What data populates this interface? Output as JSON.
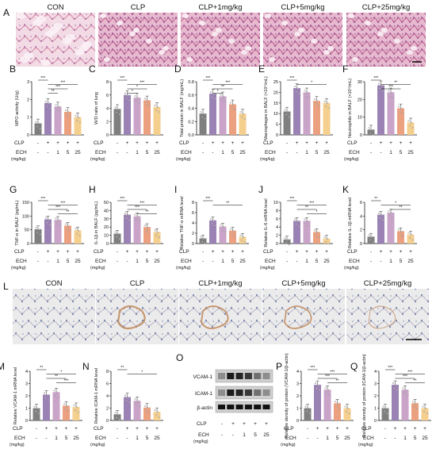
{
  "panel_letters": [
    "A",
    "B",
    "C",
    "D",
    "E",
    "F",
    "G",
    "H",
    "I",
    "J",
    "K",
    "L",
    "M",
    "N",
    "O",
    "P",
    "Q"
  ],
  "he_titles": [
    "CON",
    "CLP",
    "CLP+1mg/kg",
    "CLP+5mg/kg",
    "CLP+25mg/kg"
  ],
  "ihc_titles": [
    "CON",
    "CLP",
    "CLP+1mg/kg",
    "CLP+5mg/kg",
    "CLP+25mg/kg"
  ],
  "clp_label": "CLP",
  "ech_label": "ECH",
  "ech_unit": "(mg/kg)",
  "clp_row": [
    "-",
    "+",
    "+",
    "+",
    "+"
  ],
  "ech_row": [
    "-",
    "-",
    "1",
    "5",
    "25"
  ],
  "bar_colors": [
    "#7f7f7f",
    "#9b82b4",
    "#c9a3c8",
    "#eba07f",
    "#f5cf8e"
  ],
  "blot_labels": [
    "VCAM-1",
    "ICAM-1",
    "β-actin"
  ],
  "chart_data": [
    {
      "panel": "B",
      "type": "bar",
      "ylabel": "MPO activity (U/g)",
      "ylim": [
        0,
        3
      ],
      "yticks": [
        "0",
        "1",
        "2",
        "3"
      ],
      "values": [
        0.65,
        1.8,
        1.6,
        1.3,
        1.0
      ],
      "sig": [
        [
          "***",
          0,
          1
        ],
        [
          "***",
          1,
          4
        ],
        [
          "***",
          1,
          3
        ],
        [
          "**",
          1,
          2
        ]
      ]
    },
    {
      "panel": "C",
      "type": "bar",
      "ylabel": "W/D ratio of lung",
      "ylim": [
        0,
        8
      ],
      "yticks": [
        "0",
        "2",
        "4",
        "6",
        "8"
      ],
      "values": [
        3.9,
        6.0,
        5.6,
        5.2,
        4.2
      ],
      "sig": [
        [
          "***",
          0,
          1
        ],
        [
          "***",
          1,
          4
        ],
        [
          "*",
          1,
          3
        ],
        [
          "*",
          1,
          2
        ]
      ]
    },
    {
      "panel": "D",
      "type": "bar",
      "ylabel": "Total protein in BALF (mg/mL)",
      "ylim": [
        0,
        0.8
      ],
      "yticks": [
        "0.0",
        "0.2",
        "0.4",
        "0.6",
        "0.8"
      ],
      "values": [
        0.32,
        0.62,
        0.58,
        0.46,
        0.32
      ],
      "sig": [
        [
          "***",
          0,
          1
        ],
        [
          "***",
          1,
          4
        ],
        [
          "**",
          1,
          3
        ],
        [
          "*",
          1,
          2
        ]
      ]
    },
    {
      "panel": "E",
      "type": "bar",
      "ylabel": "Macrophages in BALF (×10⁴/mL)",
      "ylim": [
        0,
        25
      ],
      "yticks": [
        "0",
        "5",
        "10",
        "15",
        "20",
        "25"
      ],
      "values": [
        11,
        22,
        20,
        16,
        15
      ],
      "sig": [
        [
          "***",
          0,
          1
        ],
        [
          "*",
          1,
          4
        ]
      ]
    },
    {
      "panel": "F",
      "type": "bar",
      "ylabel": "Neutrophils in BALF (×10⁴/mL)",
      "ylim": [
        0,
        30
      ],
      "yticks": [
        "0",
        "10",
        "20",
        "30"
      ],
      "values": [
        3,
        28,
        24,
        15,
        7
      ],
      "sig": [
        [
          "***",
          0,
          1
        ],
        [
          "**",
          1,
          4
        ],
        [
          "***",
          1,
          3
        ]
      ]
    },
    {
      "panel": "G",
      "type": "bar",
      "ylabel": "TNF-α in BALF (pg/mL)",
      "ylim": [
        0,
        150
      ],
      "yticks": [
        "0",
        "50",
        "100",
        "150"
      ],
      "values": [
        52,
        88,
        86,
        65,
        48
      ],
      "sig": [
        [
          "***",
          0,
          1
        ],
        [
          "***",
          1,
          4
        ],
        [
          "***",
          1,
          3
        ],
        [
          "**",
          2,
          4
        ]
      ]
    },
    {
      "panel": "H",
      "type": "bar",
      "ylabel": "IL-1β in BALF (pg/mL)",
      "ylim": [
        0,
        50
      ],
      "yticks": [
        "0",
        "10",
        "20",
        "30",
        "40",
        "50"
      ],
      "values": [
        12,
        35,
        33,
        20,
        14
      ],
      "sig": [
        [
          "***",
          0,
          1
        ],
        [
          "***",
          1,
          4
        ],
        [
          "***",
          1,
          3
        ],
        [
          "**",
          2,
          4
        ]
      ]
    },
    {
      "panel": "I",
      "type": "bar",
      "ylabel": "Relative TNF-α mRNA level",
      "ylim": [
        0,
        8
      ],
      "yticks": [
        "0",
        "2",
        "4",
        "6",
        "8"
      ],
      "values": [
        1,
        4.5,
        3.3,
        2.5,
        1.3
      ],
      "sig": [
        [
          "***",
          0,
          1
        ],
        [
          "**",
          1,
          4
        ]
      ]
    },
    {
      "panel": "J",
      "type": "bar",
      "ylabel": "Relative IL-6 mRNA level",
      "ylim": [
        0,
        10
      ],
      "yticks": [
        "0",
        "2",
        "4",
        "6",
        "8",
        "10"
      ],
      "values": [
        1,
        5.5,
        5.5,
        2.8,
        1.2
      ],
      "sig": [
        [
          "***",
          0,
          1
        ],
        [
          "***",
          1,
          4
        ],
        [
          "**",
          1,
          3
        ],
        [
          "*",
          2,
          4
        ]
      ]
    },
    {
      "panel": "K",
      "type": "bar",
      "ylabel": "Relative IL-1β mRNA level",
      "ylim": [
        0,
        6
      ],
      "yticks": [
        "0",
        "2",
        "4",
        "6"
      ],
      "values": [
        1,
        4.2,
        4.5,
        1.8,
        1.3
      ],
      "sig": [
        [
          "**",
          0,
          1
        ],
        [
          "*",
          1,
          4
        ],
        [
          "**",
          2,
          4
        ]
      ]
    },
    {
      "panel": "M",
      "type": "bar",
      "ylabel": "Relative VCAM-1 mRNA level",
      "ylim": [
        0,
        4
      ],
      "yticks": [
        "0",
        "1",
        "2",
        "3",
        "4"
      ],
      "values": [
        1,
        2.1,
        2.3,
        1.2,
        1.1
      ],
      "sig": [
        [
          "**",
          0,
          1
        ],
        [
          "*",
          1,
          4
        ],
        [
          "**",
          1,
          3
        ],
        [
          "***",
          2,
          4
        ]
      ]
    },
    {
      "panel": "N",
      "type": "bar",
      "ylabel": "Relative ICAM-1 mRNA level",
      "ylim": [
        0,
        8
      ],
      "yticks": [
        "0",
        "2",
        "4",
        "6",
        "8"
      ],
      "values": [
        1,
        3.8,
        3.2,
        2.1,
        1.4
      ],
      "sig": [
        [
          "**",
          0,
          1
        ],
        [
          "*",
          1,
          4
        ]
      ]
    },
    {
      "panel": "P",
      "type": "bar",
      "ylabel": "Relative density of protein (VCAM-1/β-actin)",
      "ylim": [
        0,
        4
      ],
      "yticks": [
        "0",
        "1",
        "2",
        "3",
        "4"
      ],
      "values": [
        1,
        2.9,
        2.5,
        1.4,
        1.0
      ],
      "sig": [
        [
          "***",
          0,
          1
        ],
        [
          "***",
          1,
          4
        ],
        [
          "***",
          1,
          3
        ],
        [
          "**",
          2,
          4
        ]
      ]
    },
    {
      "panel": "Q",
      "type": "bar",
      "ylabel": "Relative density of protein (ICAM-1/β-actin)",
      "ylim": [
        0,
        4
      ],
      "yticks": [
        "0",
        "1",
        "2",
        "3",
        "4"
      ],
      "values": [
        1,
        2.9,
        2.5,
        1.4,
        1.0
      ],
      "sig": [
        [
          "***",
          0,
          1
        ],
        [
          "***",
          1,
          4
        ],
        [
          "***",
          1,
          3
        ],
        [
          "**",
          2,
          4
        ]
      ]
    }
  ]
}
